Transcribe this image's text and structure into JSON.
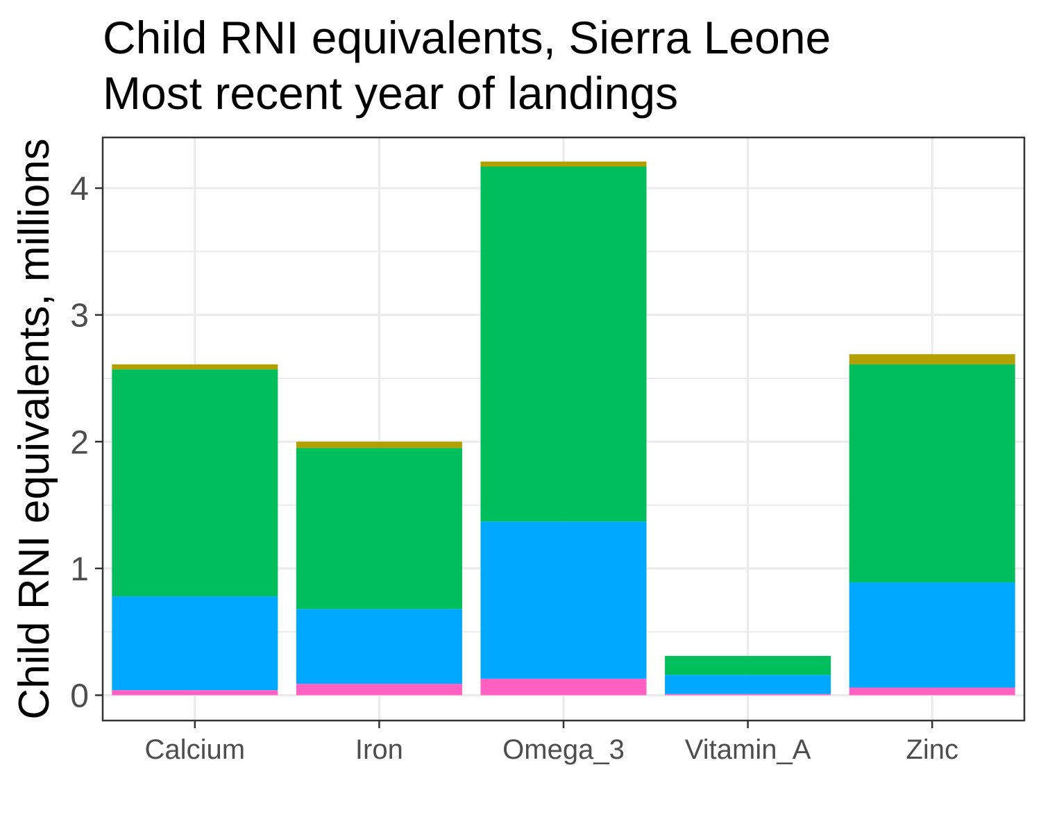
{
  "chart_data": {
    "type": "bar",
    "stacked": true,
    "title": [
      "Child RNI equivalents, Sierra Leone",
      "Most recent year of landings"
    ],
    "xlabel": "",
    "ylabel": "Child RNI equivalents, millions",
    "ylim": [
      -0.2,
      4.4
    ],
    "yticks": [
      0,
      1,
      2,
      3,
      4
    ],
    "grid": true,
    "categories": [
      "Calcium",
      "Iron",
      "Omega_3",
      "Vitamin_A",
      "Zinc"
    ],
    "series": [
      {
        "color": "#ff61c3",
        "values": [
          0.04,
          0.09,
          0.13,
          0.01,
          0.06
        ]
      },
      {
        "color": "#00a9ff",
        "values": [
          0.74,
          0.59,
          1.24,
          0.15,
          0.83
        ]
      },
      {
        "color": "#00be5c",
        "values": [
          1.79,
          1.27,
          2.8,
          0.15,
          1.72
        ]
      },
      {
        "color": "#b2a002",
        "values": [
          0.04,
          0.05,
          0.04,
          0.0,
          0.08
        ]
      }
    ]
  }
}
